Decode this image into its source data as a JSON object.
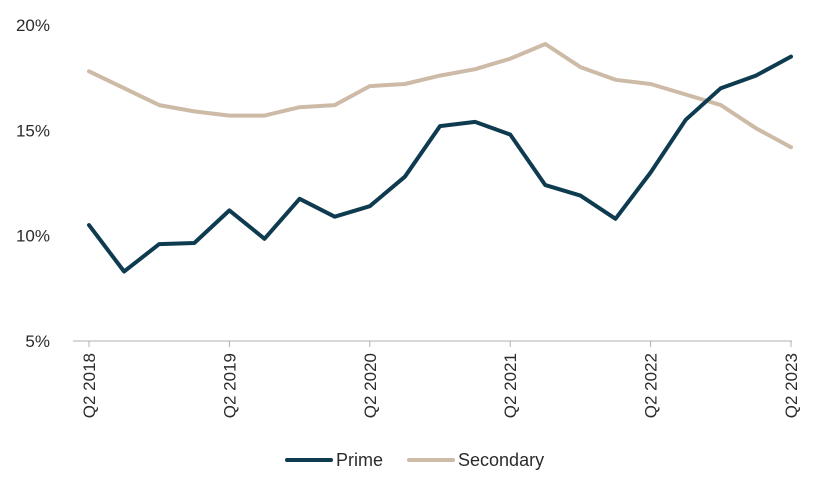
{
  "chart_data": {
    "type": "line",
    "x": [
      "Q2 2018",
      "Q3 2018",
      "Q4 2018",
      "Q1 2019",
      "Q2 2019",
      "Q3 2019",
      "Q4 2019",
      "Q1 2020",
      "Q2 2020",
      "Q3 2020",
      "Q4 2020",
      "Q1 2021",
      "Q2 2021",
      "Q3 2021",
      "Q4 2021",
      "Q1 2022",
      "Q2 2022",
      "Q3 2022",
      "Q4 2022",
      "Q1 2023",
      "Q2 2023"
    ],
    "x_tick_labels": [
      "Q2 2018",
      "Q2 2019",
      "Q2 2020",
      "Q2 2021",
      "Q2 2022",
      "Q2 2023"
    ],
    "y_tick_labels": [
      "20%",
      "15%",
      "10%",
      "5%"
    ],
    "ylim": [
      5,
      20
    ],
    "y_unit": "%",
    "grid": false,
    "legend_position": "bottom",
    "series": [
      {
        "name": "Prime",
        "color": "#0e3b4f",
        "values": [
          10.5,
          8.3,
          9.6,
          9.65,
          11.2,
          9.85,
          11.75,
          10.9,
          11.4,
          12.8,
          15.2,
          15.4,
          14.8,
          12.4,
          11.9,
          10.8,
          13.0,
          15.5,
          17.0,
          17.6,
          18.5
        ]
      },
      {
        "name": "Secondary",
        "color": "#cdbaa7",
        "values": [
          17.8,
          17.0,
          16.2,
          15.9,
          15.7,
          15.7,
          16.1,
          16.2,
          17.1,
          17.2,
          17.6,
          17.9,
          18.4,
          19.1,
          18.0,
          17.4,
          17.2,
          16.7,
          16.2,
          15.1,
          14.2
        ]
      }
    ]
  }
}
